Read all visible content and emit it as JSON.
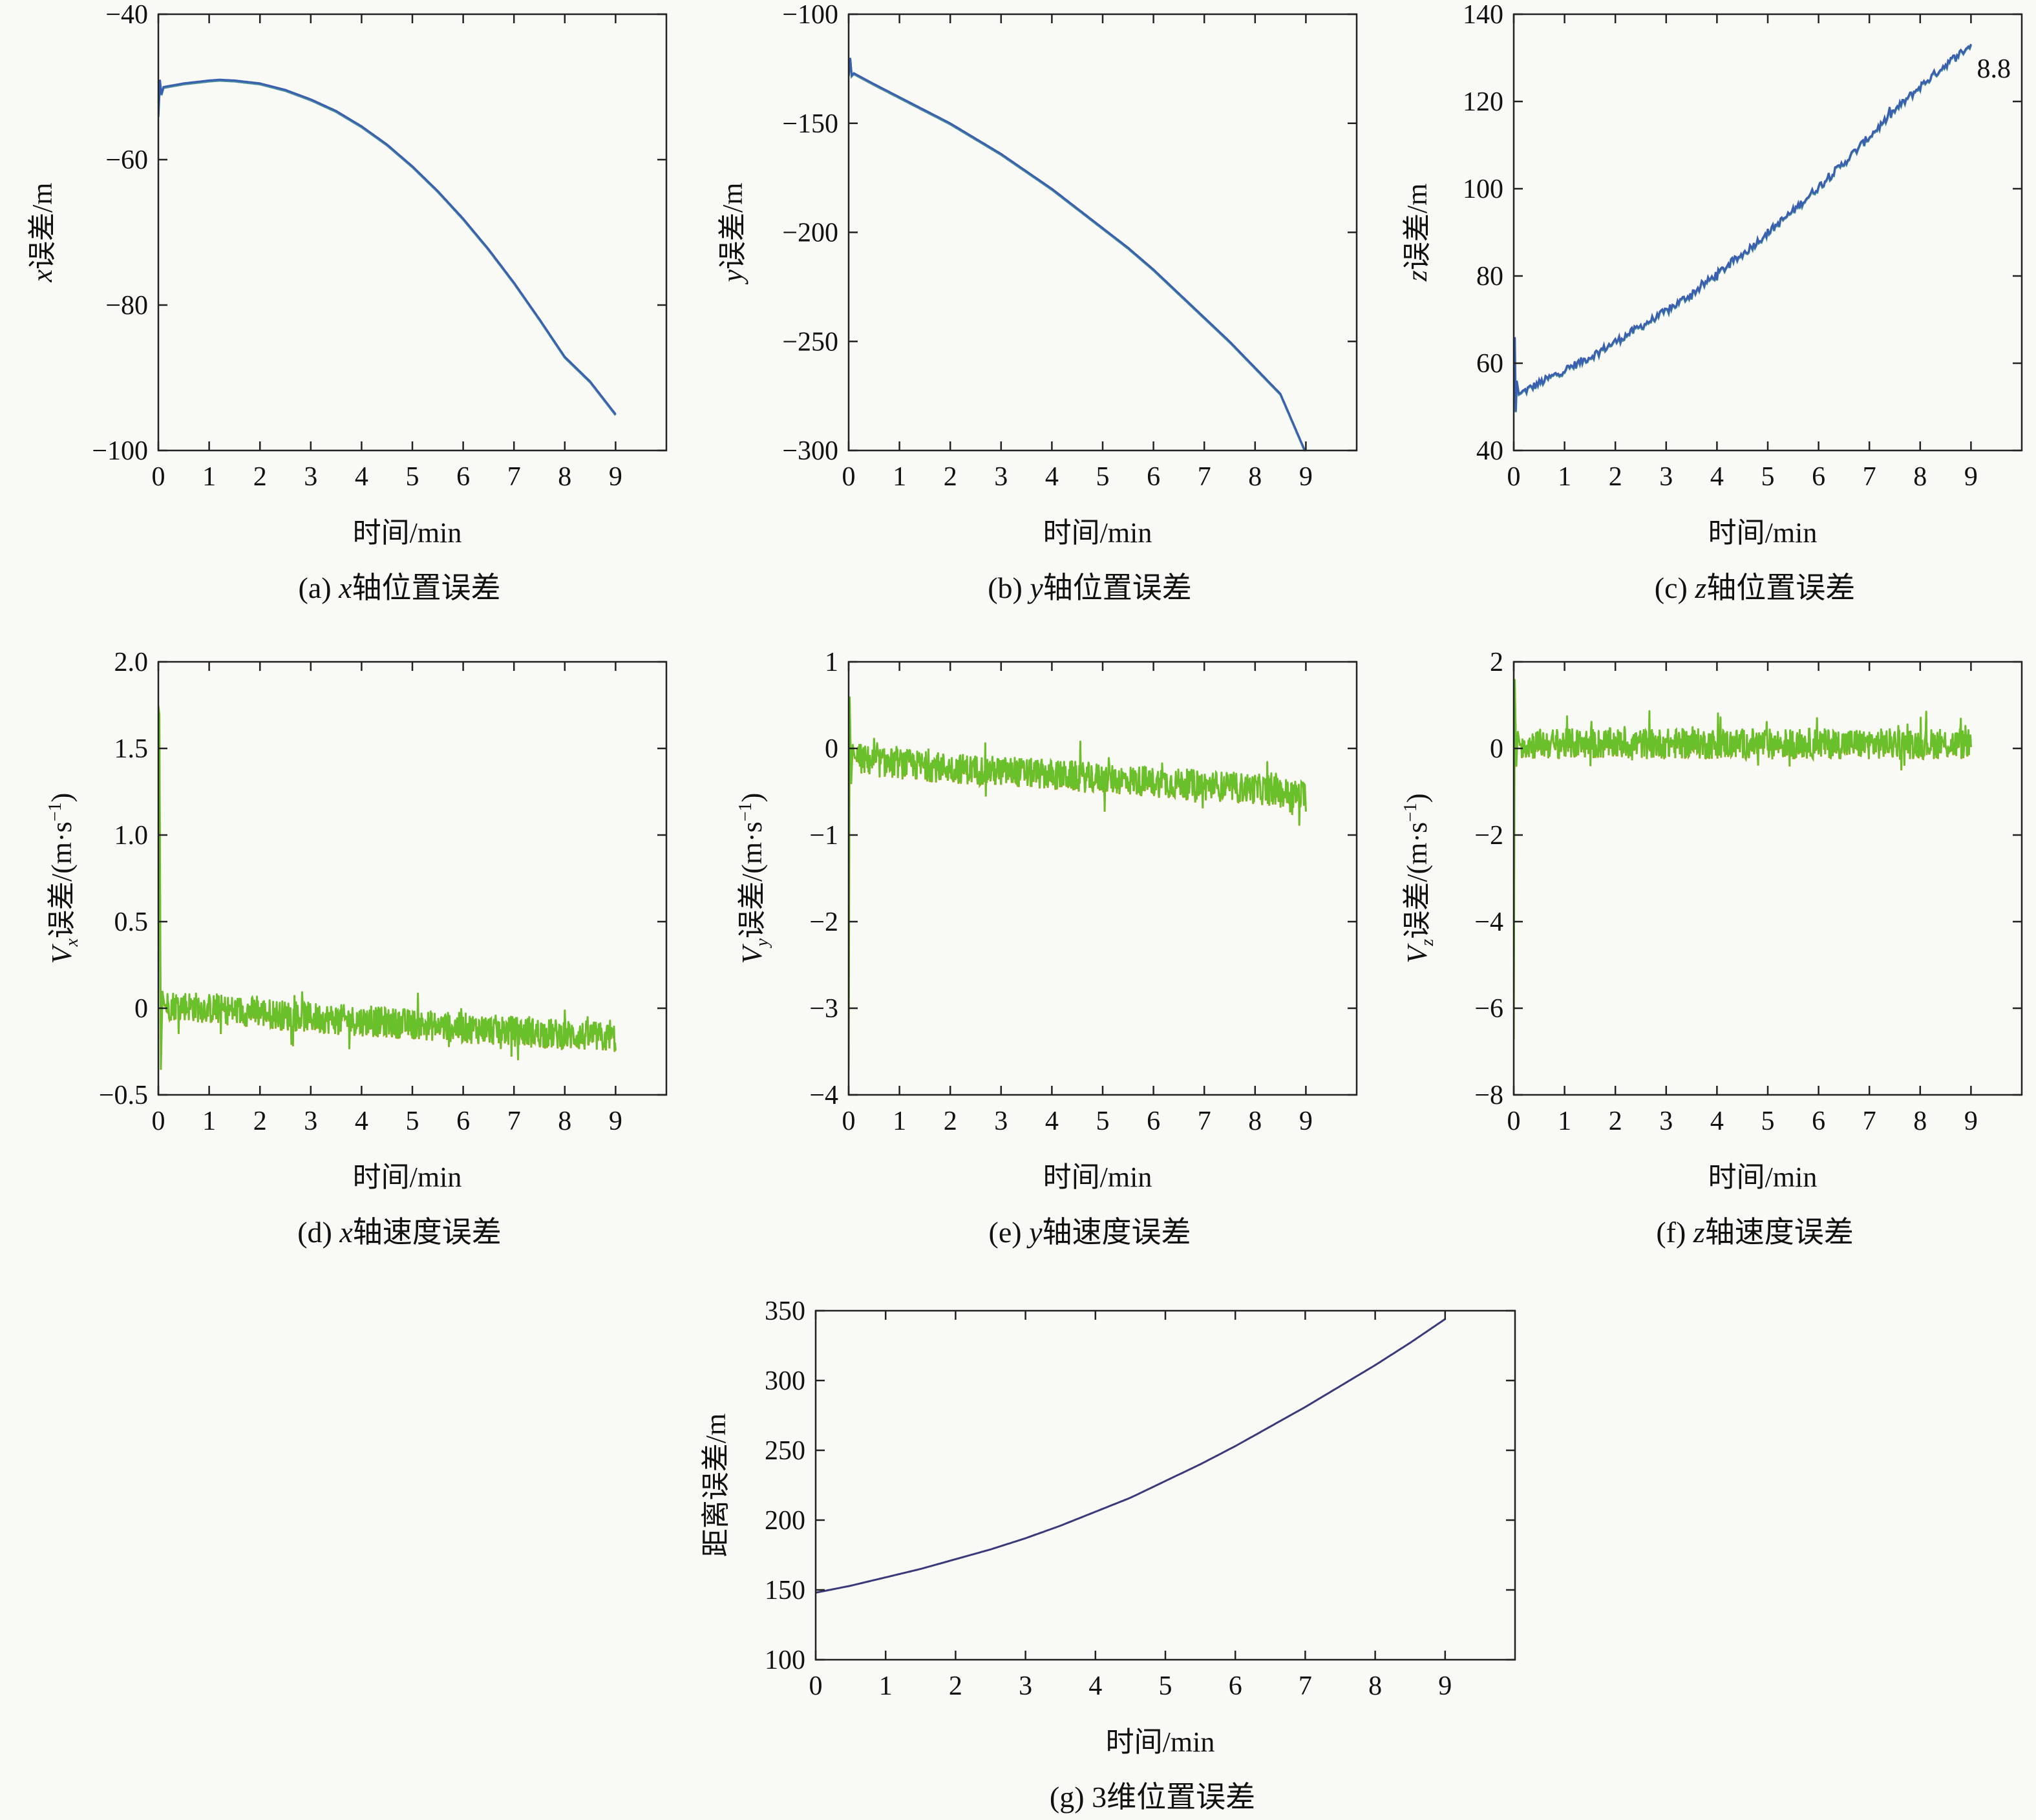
{
  "figure": {
    "background": "#f9f9f6"
  },
  "chart_data": [
    {
      "id": "a",
      "type": "line",
      "caption": {
        "prefix": "(a) ",
        "var": "x",
        "rest": "轴位置误差"
      },
      "ylabel": {
        "var": "x",
        "sub": "",
        "rest": "误差/m",
        "superscript_unit": false
      },
      "xlabel": "时间/min",
      "xlim": [
        0,
        10
      ],
      "ylim": [
        -100,
        -40
      ],
      "xticks": [
        0,
        1,
        2,
        3,
        4,
        5,
        6,
        7,
        8,
        9
      ],
      "yticks": [
        -100,
        -80,
        -60,
        -40
      ],
      "ytick_labels": [
        "−100",
        "−80",
        "−60",
        "−40"
      ],
      "annotation": "",
      "series": [
        {
          "color": "#3a5fb0",
          "overlay_color": "#4a8e9a",
          "x": [
            0,
            0.03,
            0.06,
            0.1,
            0.5,
            1,
            1.2,
            1.5,
            2,
            2.5,
            3,
            3.5,
            4,
            4.5,
            5,
            5.5,
            6,
            6.5,
            7,
            7.5,
            8,
            8.5,
            9
          ],
          "y": [
            -54,
            -49,
            -51,
            -50,
            -49.5,
            -49.1,
            -49,
            -49.1,
            -49.5,
            -50.4,
            -51.7,
            -53.3,
            -55.4,
            -57.9,
            -60.9,
            -64.3,
            -68.1,
            -72.3,
            -76.9,
            -81.9,
            -87.1,
            -90.5,
            -95
          ]
        }
      ]
    },
    {
      "id": "b",
      "type": "line",
      "caption": {
        "prefix": "(b) ",
        "var": "y",
        "rest": "轴位置误差"
      },
      "ylabel": {
        "var": "y",
        "sub": "",
        "rest": "误差/m",
        "superscript_unit": false
      },
      "xlabel": "时间/min",
      "xlim": [
        0,
        10
      ],
      "ylim": [
        -300,
        -100
      ],
      "xticks": [
        0,
        1,
        2,
        3,
        4,
        5,
        6,
        7,
        8,
        9
      ],
      "yticks": [
        -300,
        -250,
        -200,
        -150,
        -100
      ],
      "ytick_labels": [
        "−300",
        "−250",
        "−200",
        "−150",
        "−100"
      ],
      "annotation": "",
      "series": [
        {
          "color": "#3a5fb0",
          "overlay_color": "#4a8e9a",
          "x": [
            0,
            0.03,
            0.06,
            0.1,
            0.5,
            1,
            1.5,
            2,
            2.5,
            3,
            3.5,
            4,
            4.5,
            5,
            5.5,
            6,
            6.5,
            7,
            7.5,
            8,
            8.5,
            9
          ],
          "y": [
            -128,
            -120,
            -128,
            -127,
            -132,
            -138,
            -144,
            -150,
            -157,
            -164,
            -172,
            -180,
            -189,
            -198,
            -207,
            -217,
            -228,
            -239,
            -250,
            -262,
            -274,
            -301
          ]
        }
      ]
    },
    {
      "id": "c",
      "type": "line",
      "caption": {
        "prefix": "(c) ",
        "var": "z",
        "rest": "轴位置误差"
      },
      "ylabel": {
        "var": "z",
        "sub": "",
        "rest": "误差/m",
        "superscript_unit": false
      },
      "xlabel": "时间/min",
      "xlim": [
        0,
        10
      ],
      "ylim": [
        40,
        140
      ],
      "xticks": [
        0,
        1,
        2,
        3,
        4,
        5,
        6,
        7,
        8,
        9
      ],
      "yticks": [
        40,
        60,
        80,
        100,
        120,
        140
      ],
      "ytick_labels": [
        "40",
        "60",
        "80",
        "100",
        "120",
        "140"
      ],
      "annotation": "8.8",
      "annotation_x": 9.45,
      "annotation_y": 125.5,
      "series": [
        {
          "color": "#3a5fb0",
          "overlay_color": "#4a8e9a",
          "x": [
            0,
            0.02,
            0.04,
            0.06,
            0.1,
            0.5,
            1,
            1.5,
            2,
            2.5,
            3,
            3.5,
            4,
            4.5,
            5,
            5.5,
            6,
            6.5,
            7,
            7.5,
            8,
            8.5,
            9
          ],
          "y": [
            60,
            66,
            49,
            56,
            53,
            55.5,
            58.5,
            61.5,
            65,
            68.5,
            72,
            76,
            80.5,
            85,
            90,
            95,
            100.5,
            106,
            112,
            118,
            123.5,
            128.5,
            133
          ]
        }
      ]
    },
    {
      "id": "d",
      "type": "line",
      "caption": {
        "prefix": "(d) ",
        "var": "x",
        "rest": "轴速度误差"
      },
      "ylabel": {
        "var": "V",
        "sub": "x",
        "rest": "误差/(m·s",
        "superscript_unit": true
      },
      "xlabel": "时间/min",
      "xlim": [
        0,
        10
      ],
      "ylim": [
        -0.5,
        2.0
      ],
      "xticks": [
        0,
        1,
        2,
        3,
        4,
        5,
        6,
        7,
        8,
        9
      ],
      "yticks": [
        -0.5,
        0,
        0.5,
        1.0,
        1.5,
        2.0
      ],
      "ytick_labels": [
        "−0.5",
        "0",
        "0.5",
        "1.0",
        "1.5",
        "2.0"
      ],
      "annotation": "",
      "series": [
        {
          "color": "#68c02a",
          "overlay_color": "#9aa820",
          "x": [
            0,
            0.02,
            0.05,
            0.08,
            0.12,
            0.5,
            1,
            1.5,
            2,
            2.5,
            3,
            3.5,
            4,
            4.5,
            5,
            5.5,
            6,
            6.5,
            7,
            7.5,
            8,
            8.5,
            9
          ],
          "y": [
            1.75,
            1.7,
            -0.35,
            0.1,
            0.02,
            0.02,
            0.0,
            -0.01,
            -0.02,
            -0.04,
            -0.05,
            -0.06,
            -0.07,
            -0.08,
            -0.09,
            -0.1,
            -0.11,
            -0.12,
            -0.13,
            -0.14,
            -0.15,
            -0.16,
            -0.17
          ]
        }
      ]
    },
    {
      "id": "e",
      "type": "line",
      "caption": {
        "prefix": "(e) ",
        "var": "y",
        "rest": "轴速度误差"
      },
      "ylabel": {
        "var": "V",
        "sub": "y",
        "rest": "误差/(m·s",
        "superscript_unit": true
      },
      "xlabel": "时间/min",
      "xlim": [
        0,
        10
      ],
      "ylim": [
        -4,
        1
      ],
      "xticks": [
        0,
        1,
        2,
        3,
        4,
        5,
        6,
        7,
        8,
        9
      ],
      "yticks": [
        -4,
        -3,
        -2,
        -1,
        0,
        1
      ],
      "ytick_labels": [
        "−4",
        "−3",
        "−2",
        "−1",
        "0",
        "1"
      ],
      "annotation": "",
      "series": [
        {
          "color": "#68c02a",
          "overlay_color": "#9aa820",
          "x": [
            0,
            0.02,
            0.05,
            0.08,
            0.12,
            0.5,
            1,
            1.5,
            2,
            2.5,
            3,
            3.5,
            4,
            4.5,
            5,
            5.5,
            6,
            6.5,
            7,
            7.5,
            8,
            8.5,
            9
          ],
          "y": [
            -3.7,
            0.6,
            -0.4,
            0.05,
            -0.1,
            -0.15,
            -0.17,
            -0.2,
            -0.22,
            -0.24,
            -0.26,
            -0.28,
            -0.3,
            -0.32,
            -0.34,
            -0.36,
            -0.38,
            -0.4,
            -0.42,
            -0.44,
            -0.46,
            -0.5,
            -0.55
          ]
        }
      ]
    },
    {
      "id": "f",
      "type": "line",
      "caption": {
        "prefix": "(f) ",
        "var": "z",
        "rest": "轴速度误差"
      },
      "ylabel": {
        "var": "V",
        "sub": "z",
        "rest": "误差/(m·s",
        "superscript_unit": true
      },
      "xlabel": "时间/min",
      "xlim": [
        0,
        10
      ],
      "ylim": [
        -8,
        2
      ],
      "xticks": [
        0,
        1,
        2,
        3,
        4,
        5,
        6,
        7,
        8,
        9
      ],
      "yticks": [
        -8,
        -6,
        -4,
        -2,
        0,
        2
      ],
      "ytick_labels": [
        "−8",
        "−6",
        "−4",
        "−2",
        "0",
        "2"
      ],
      "annotation": "",
      "series": [
        {
          "color": "#68c02a",
          "overlay_color": "#9aa820",
          "x": [
            0,
            0.02,
            0.05,
            0.08,
            0.12,
            0.5,
            1,
            1.5,
            2,
            2.5,
            3,
            3.5,
            4,
            4.5,
            5,
            5.5,
            6,
            6.5,
            7,
            7.5,
            8,
            8.5,
            9
          ],
          "y": [
            -6.7,
            1.6,
            -0.4,
            0.4,
            0.1,
            0.12,
            0.12,
            0.12,
            0.12,
            0.12,
            0.12,
            0.12,
            0.12,
            0.12,
            0.12,
            0.12,
            0.12,
            0.12,
            0.12,
            0.12,
            0.12,
            0.12,
            0.1
          ]
        }
      ]
    },
    {
      "id": "g",
      "type": "line",
      "caption": {
        "prefix": "(g) ",
        "var": "",
        "rest": "3维位置误差"
      },
      "ylabel": {
        "var": "",
        "sub": "",
        "rest": "距离误差/m",
        "superscript_unit": false
      },
      "xlabel": "时间/min",
      "xlim": [
        0,
        10
      ],
      "ylim": [
        100,
        350
      ],
      "xticks": [
        0,
        1,
        2,
        3,
        4,
        5,
        6,
        7,
        8,
        9
      ],
      "yticks": [
        100,
        150,
        200,
        250,
        300,
        350
      ],
      "ytick_labels": [
        "100",
        "150",
        "200",
        "250",
        "300",
        "350"
      ],
      "annotation": "",
      "series": [
        {
          "color": "#3a3a7a",
          "overlay_color": "",
          "x": [
            0,
            0.5,
            1,
            1.5,
            2,
            2.5,
            3,
            3.5,
            4,
            4.5,
            5,
            5.5,
            6,
            6.5,
            7,
            7.5,
            8,
            8.5,
            9
          ],
          "y": [
            148,
            153,
            159,
            165,
            172,
            179,
            187,
            196,
            206,
            216,
            228,
            240,
            253,
            267,
            281,
            296,
            311,
            327,
            344
          ]
        }
      ]
    }
  ]
}
